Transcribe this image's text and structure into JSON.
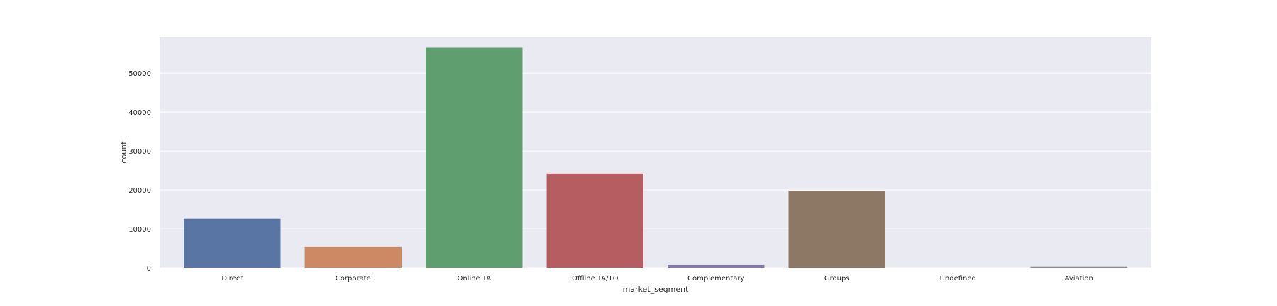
{
  "chart_data": {
    "type": "bar",
    "title": "",
    "xlabel": "market_segment",
    "ylabel": "count",
    "categories": [
      "Direct",
      "Corporate",
      "Online TA",
      "Offline TA/TO",
      "Complementary",
      "Groups",
      "Undefined",
      "Aviation"
    ],
    "values": [
      12606,
      5295,
      56477,
      24219,
      743,
      19811,
      2,
      237
    ],
    "colors": [
      "#5875a4",
      "#cc8963",
      "#5f9e6e",
      "#b55d60",
      "#857aab",
      "#8d7866",
      "#d095bf",
      "#8c8c8c"
    ],
    "ylim": [
      0,
      59300
    ],
    "yticks": [
      0,
      10000,
      20000,
      30000,
      40000,
      50000
    ],
    "grid": true,
    "background": "#eaeaf2",
    "grid_color": "#ffffff"
  }
}
